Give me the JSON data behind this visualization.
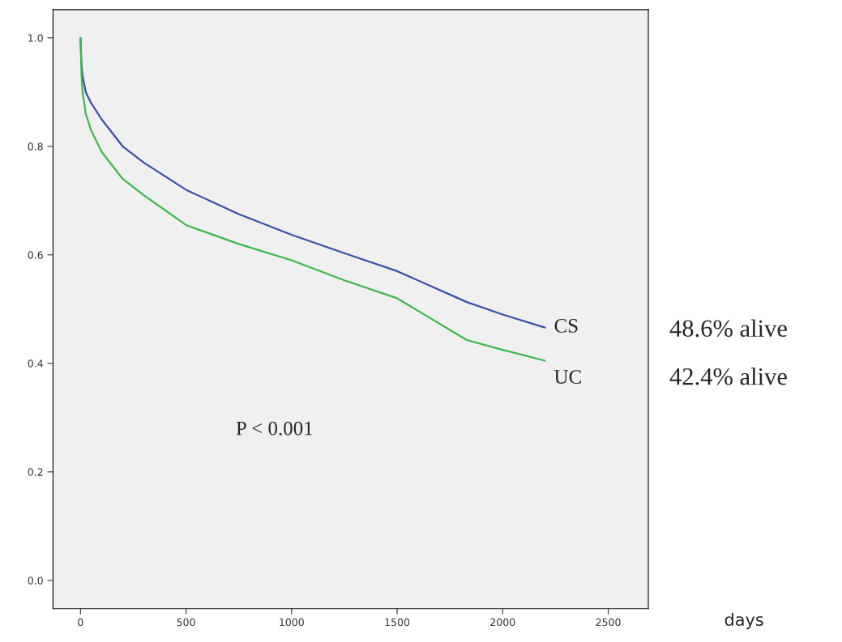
{
  "chart_data": {
    "type": "line",
    "xlabel": "days",
    "xlim": [
      -130,
      2690
    ],
    "xticks": [
      0,
      500,
      1000,
      1500,
      2000,
      2500
    ],
    "ylim": [
      -0.052,
      1.052
    ],
    "yticks": [
      {
        "value": 0,
        "label": "0.0"
      },
      {
        "value": 0.2,
        "label": "0.2"
      },
      {
        "value": 0.4,
        "label": "0.4"
      },
      {
        "value": 0.6,
        "label": "0.6"
      },
      {
        "value": 0.8,
        "label": "0.8"
      },
      {
        "value": 1,
        "label": "1.0"
      }
    ],
    "grid": false,
    "series": [
      {
        "color": "#3a4fa8",
        "x": [
          0,
          5,
          10,
          25,
          50,
          100,
          200,
          300,
          500,
          750,
          1000,
          1250,
          1500,
          1830,
          2000,
          2200
        ],
        "values": [
          1.0,
          0.95,
          0.93,
          0.9,
          0.88,
          0.85,
          0.8,
          0.77,
          0.72,
          0.675,
          0.637,
          0.603,
          0.57,
          0.513,
          0.49,
          0.466
        ]
      },
      {
        "color": "#3cb84a",
        "x": [
          0,
          5,
          10,
          25,
          50,
          100,
          200,
          300,
          500,
          750,
          1000,
          1250,
          1500,
          1830,
          2000,
          2200
        ],
        "values": [
          1.0,
          0.93,
          0.9,
          0.86,
          0.83,
          0.79,
          0.74,
          0.71,
          0.655,
          0.62,
          0.59,
          0.553,
          0.52,
          0.443,
          0.425,
          0.405
        ]
      }
    ],
    "annotations": [
      {
        "text": "CS",
        "x": 2200,
        "y": 0.466
      },
      {
        "text": "UC",
        "x": 2200,
        "y": 0.405
      },
      "48.6% alive",
      "42.4% alive",
      "P < 0.001"
    ]
  }
}
